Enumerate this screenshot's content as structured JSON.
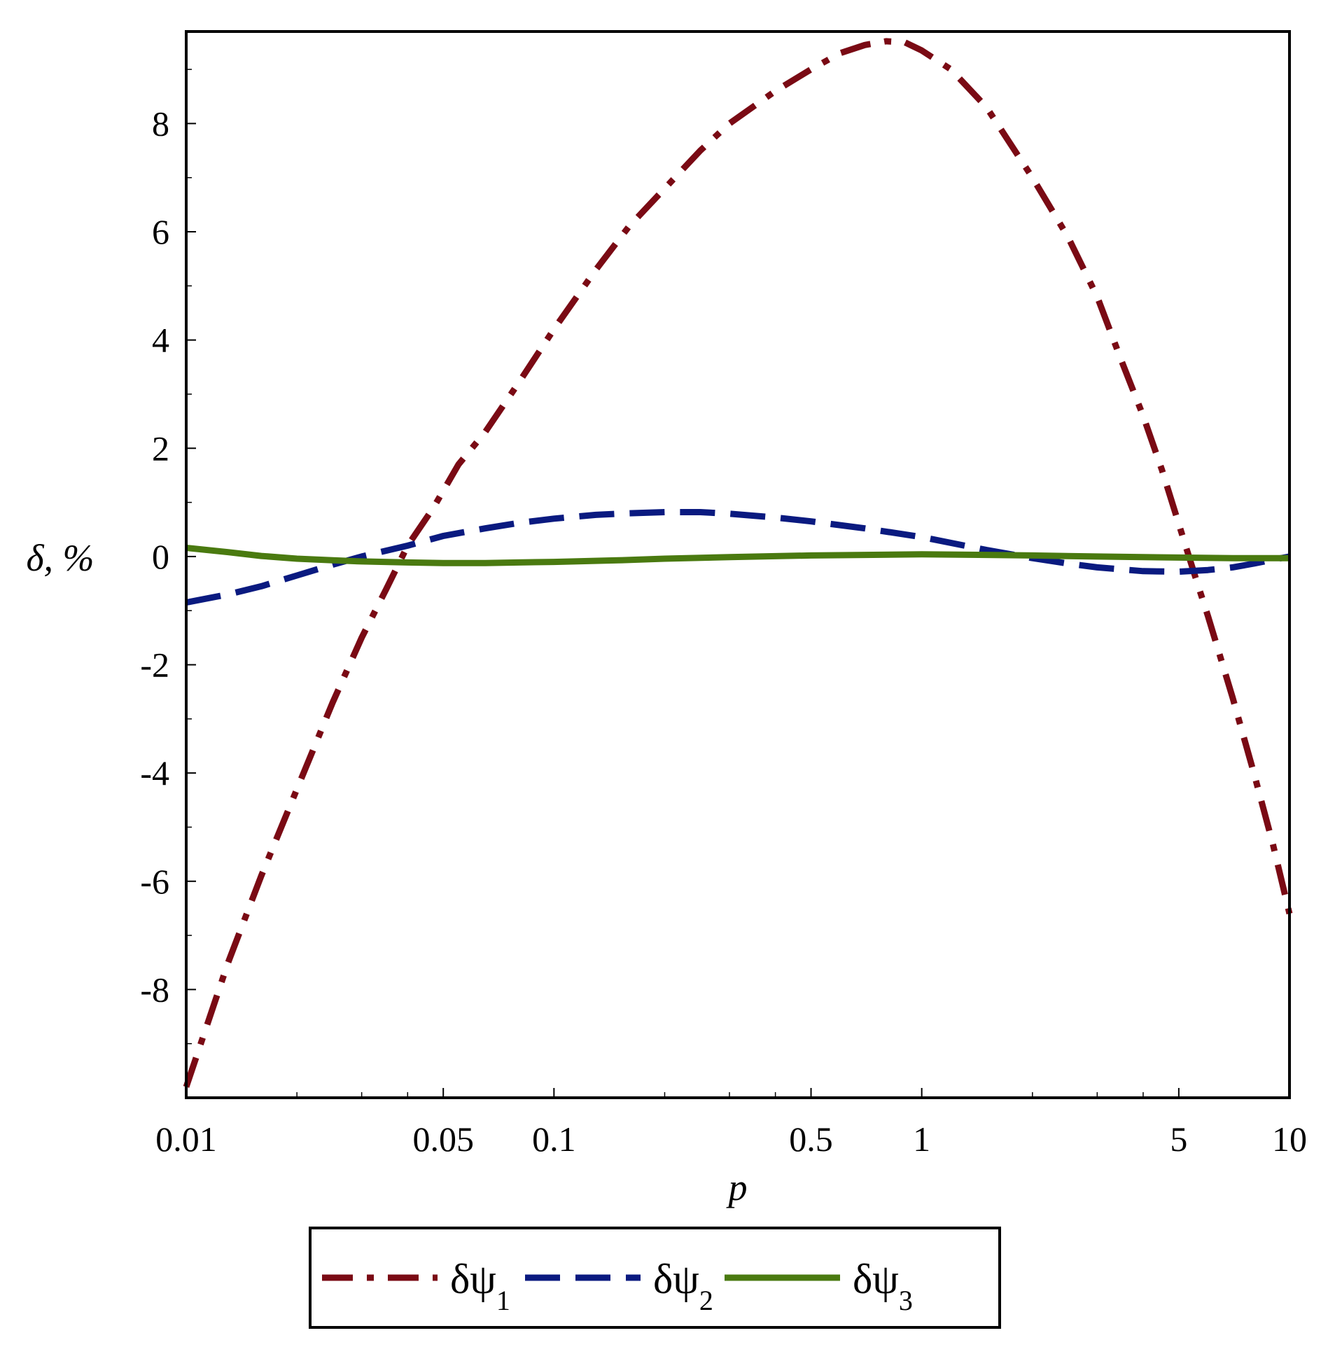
{
  "chart_data": {
    "type": "line",
    "title": "",
    "xlabel": "p",
    "ylabel": "δ, %",
    "x_scale": "log",
    "xlim": [
      0.01,
      10
    ],
    "ylim": [
      -10,
      9.7
    ],
    "grid": false,
    "legend_position": "bottom",
    "x_ticks": [
      {
        "value": 0.01,
        "label": "0.01"
      },
      {
        "value": 0.05,
        "label": "0.05"
      },
      {
        "value": 0.1,
        "label": "0.1"
      },
      {
        "value": 0.5,
        "label": "0.5"
      },
      {
        "value": 1,
        "label": "1"
      },
      {
        "value": 5,
        "label": "5"
      },
      {
        "value": 10,
        "label": "10"
      }
    ],
    "y_ticks": [
      {
        "value": 8,
        "label": "8"
      },
      {
        "value": 6,
        "label": "6"
      },
      {
        "value": 4,
        "label": "4"
      },
      {
        "value": 2,
        "label": "2"
      },
      {
        "value": 0,
        "label": "0"
      },
      {
        "value": -2,
        "label": "-2"
      },
      {
        "value": -4,
        "label": "-4"
      },
      {
        "value": -6,
        "label": "-6"
      },
      {
        "value": -8,
        "label": "-8"
      }
    ],
    "series": [
      {
        "name": "δψ",
        "subscript": "1",
        "color": "#7a0a14",
        "dash": "dash-dot",
        "points": [
          [
            0.01,
            -9.8
          ],
          [
            0.013,
            -7.5
          ],
          [
            0.016,
            -5.9
          ],
          [
            0.02,
            -4.3
          ],
          [
            0.025,
            -2.7
          ],
          [
            0.03,
            -1.5
          ],
          [
            0.035,
            -0.6
          ],
          [
            0.04,
            0.2
          ],
          [
            0.047,
            0.9
          ],
          [
            0.055,
            1.7
          ],
          [
            0.065,
            2.3
          ],
          [
            0.08,
            3.2
          ],
          [
            0.1,
            4.2
          ],
          [
            0.13,
            5.3
          ],
          [
            0.16,
            6.1
          ],
          [
            0.2,
            6.8
          ],
          [
            0.25,
            7.5
          ],
          [
            0.3,
            8.0
          ],
          [
            0.4,
            8.6
          ],
          [
            0.5,
            9.0
          ],
          [
            0.6,
            9.3
          ],
          [
            0.7,
            9.45
          ],
          [
            0.8,
            9.52
          ],
          [
            0.9,
            9.5
          ],
          [
            1.0,
            9.35
          ],
          [
            1.2,
            9.0
          ],
          [
            1.5,
            8.3
          ],
          [
            2.0,
            7.0
          ],
          [
            2.5,
            5.9
          ],
          [
            3.0,
            4.8
          ],
          [
            3.5,
            3.6
          ],
          [
            4.0,
            2.6
          ],
          [
            4.5,
            1.6
          ],
          [
            5.0,
            0.6
          ],
          [
            5.5,
            -0.3
          ],
          [
            6.0,
            -1.1
          ],
          [
            7.0,
            -2.6
          ],
          [
            8.0,
            -4.0
          ],
          [
            9.0,
            -5.3
          ],
          [
            10.0,
            -6.6
          ]
        ]
      },
      {
        "name": "δψ",
        "subscript": "2",
        "color": "#0a1a80",
        "dash": "dashed",
        "points": [
          [
            0.01,
            -0.85
          ],
          [
            0.013,
            -0.7
          ],
          [
            0.016,
            -0.55
          ],
          [
            0.02,
            -0.35
          ],
          [
            0.025,
            -0.15
          ],
          [
            0.03,
            0.0
          ],
          [
            0.04,
            0.2
          ],
          [
            0.05,
            0.38
          ],
          [
            0.065,
            0.52
          ],
          [
            0.08,
            0.62
          ],
          [
            0.1,
            0.7
          ],
          [
            0.13,
            0.77
          ],
          [
            0.16,
            0.8
          ],
          [
            0.2,
            0.82
          ],
          [
            0.25,
            0.82
          ],
          [
            0.3,
            0.79
          ],
          [
            0.4,
            0.72
          ],
          [
            0.5,
            0.65
          ],
          [
            0.7,
            0.52
          ],
          [
            1.0,
            0.36
          ],
          [
            1.5,
            0.12
          ],
          [
            2.0,
            -0.03
          ],
          [
            2.5,
            -0.13
          ],
          [
            3.0,
            -0.2
          ],
          [
            4.0,
            -0.27
          ],
          [
            5.0,
            -0.28
          ],
          [
            6.0,
            -0.25
          ],
          [
            7.0,
            -0.2
          ],
          [
            8.0,
            -0.13
          ],
          [
            9.0,
            -0.06
          ],
          [
            10.0,
            0.0
          ]
        ]
      },
      {
        "name": "δψ",
        "subscript": "3",
        "color": "#4a7a10",
        "dash": "solid",
        "points": [
          [
            0.01,
            0.16
          ],
          [
            0.013,
            0.08
          ],
          [
            0.016,
            0.01
          ],
          [
            0.02,
            -0.04
          ],
          [
            0.025,
            -0.07
          ],
          [
            0.03,
            -0.09
          ],
          [
            0.04,
            -0.11
          ],
          [
            0.05,
            -0.12
          ],
          [
            0.065,
            -0.12
          ],
          [
            0.08,
            -0.11
          ],
          [
            0.1,
            -0.1
          ],
          [
            0.15,
            -0.07
          ],
          [
            0.2,
            -0.04
          ],
          [
            0.3,
            -0.01
          ],
          [
            0.5,
            0.02
          ],
          [
            0.7,
            0.03
          ],
          [
            1.0,
            0.04
          ],
          [
            1.5,
            0.03
          ],
          [
            2.0,
            0.02
          ],
          [
            3.0,
            0.0
          ],
          [
            5.0,
            -0.02
          ],
          [
            7.0,
            -0.03
          ],
          [
            10.0,
            -0.03
          ]
        ]
      }
    ]
  }
}
